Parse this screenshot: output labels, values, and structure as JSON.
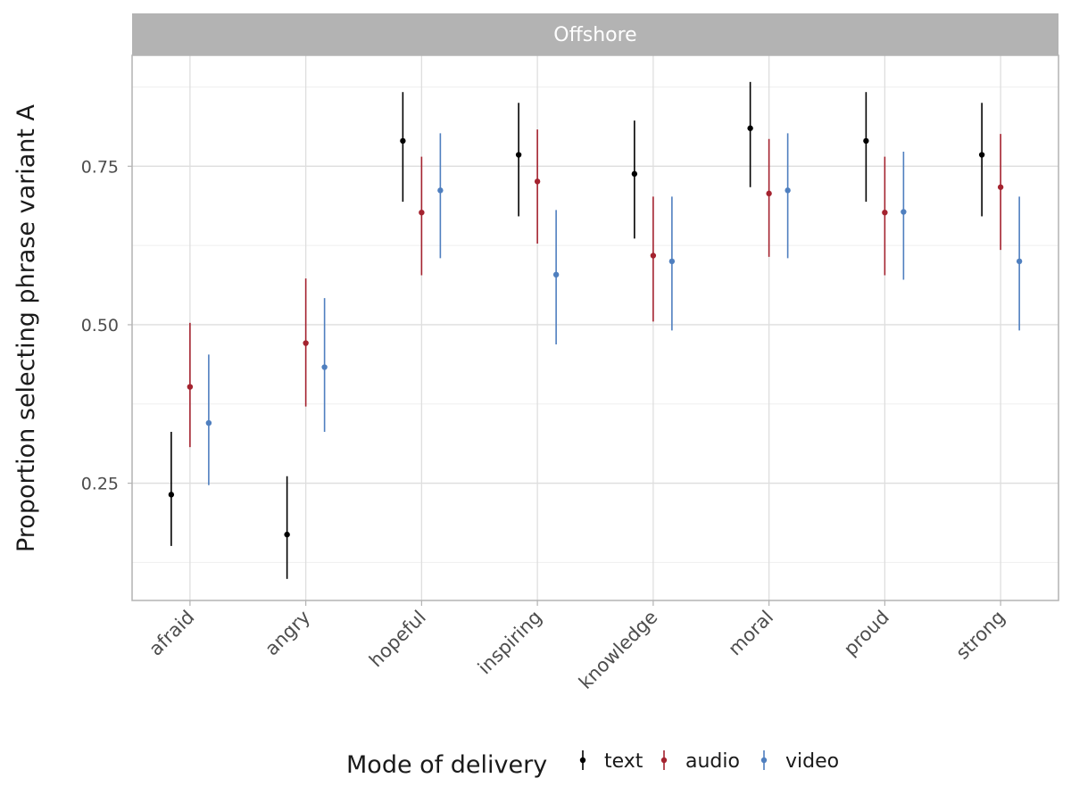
{
  "chart_data": {
    "type": "scatter",
    "subtype": "pointrange",
    "panel_title": "Offshore",
    "xlabel": "",
    "ylabel": "Proportion selecting phrase variant A",
    "ylim": [
      0.065,
      0.925
    ],
    "yticks": [
      0.25,
      0.5,
      0.75
    ],
    "ytick_labels": [
      "0.25",
      "0.50",
      "0.75"
    ],
    "categories": [
      "afraid",
      "angry",
      "hopeful",
      "inspiring",
      "knowledge",
      "moral",
      "proud",
      "strong"
    ],
    "grid": true,
    "legend": {
      "title": "Mode of delivery",
      "placement": "bottom"
    },
    "colors": {
      "strip_bg": "#b3b3b3",
      "grid_major": "#dedede",
      "grid_minor": "#efefef",
      "panel_border": "#b3b3b3"
    },
    "series": [
      {
        "name": "text",
        "color": "#000000",
        "values": [
          0.232,
          0.169,
          0.79,
          0.768,
          0.738,
          0.81,
          0.79,
          0.768
        ],
        "lower": [
          0.151,
          0.099,
          0.694,
          0.671,
          0.636,
          0.717,
          0.694,
          0.671
        ],
        "upper": [
          0.331,
          0.261,
          0.867,
          0.85,
          0.822,
          0.883,
          0.867,
          0.85
        ]
      },
      {
        "name": "audio",
        "color": "#a4232f",
        "values": [
          0.402,
          0.471,
          0.677,
          0.726,
          0.609,
          0.707,
          0.677,
          0.717
        ],
        "lower": [
          0.307,
          0.371,
          0.578,
          0.628,
          0.505,
          0.607,
          0.578,
          0.618
        ],
        "upper": [
          0.503,
          0.573,
          0.765,
          0.808,
          0.702,
          0.793,
          0.765,
          0.801
        ]
      },
      {
        "name": "video",
        "color": "#4f7fbf",
        "values": [
          0.345,
          0.433,
          0.712,
          0.579,
          0.6,
          0.712,
          0.678,
          0.6
        ],
        "lower": [
          0.247,
          0.331,
          0.605,
          0.469,
          0.491,
          0.605,
          0.571,
          0.491
        ],
        "upper": [
          0.453,
          0.542,
          0.802,
          0.681,
          0.702,
          0.802,
          0.773,
          0.702
        ]
      }
    ]
  }
}
